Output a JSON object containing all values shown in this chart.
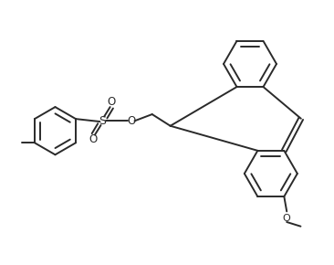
{
  "bg_color": "#ffffff",
  "line_color": "#2a2a2a",
  "line_width": 1.4,
  "figsize": [
    3.66,
    2.9
  ],
  "dpi": 100,
  "xlim": [
    0,
    10
  ],
  "ylim": [
    0,
    8
  ]
}
